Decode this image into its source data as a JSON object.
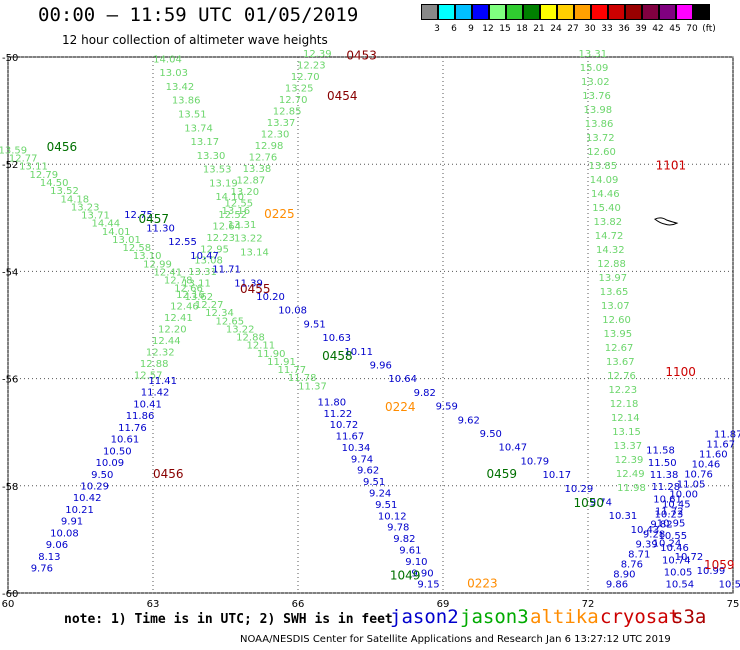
{
  "title": "00:00 – 11:59 UTC 01/05/2019",
  "subtitle": "12 hour collection of altimeter wave heights",
  "colorbar": {
    "labels": [
      "3",
      "6",
      "9",
      "12",
      "15",
      "18",
      "21",
      "24",
      "27",
      "30",
      "33",
      "36",
      "39",
      "42",
      "45",
      "70",
      "(ft)"
    ],
    "colors": [
      "#888888",
      "#00ffff",
      "#00bfff",
      "#0000ff",
      "#80ff80",
      "#30cc30",
      "#008000",
      "#ffff00",
      "#ffd000",
      "#ffa000",
      "#ff0000",
      "#cc0000",
      "#990000",
      "#800040",
      "#800080",
      "#ff00ff",
      "#000000"
    ]
  },
  "note": "note:  1) Time is in UTC; 2) SWH is in feet",
  "satellites": [
    {
      "name": "jason2",
      "color": "#0000cc"
    },
    {
      "name": "jason3",
      "color": "#00aa00"
    },
    {
      "name": "altika",
      "color": "#ff8c00"
    },
    {
      "name": "cryosat",
      "color": "#cc0000"
    },
    {
      "name": "s3a",
      "color": "#aa0000"
    }
  ],
  "footer": "NOAA/NESDIS Center for Satellite Applications and Research   Jan  6 13:27:12 UTC 2019",
  "map": {
    "lon_ticks": [
      "60",
      "63",
      "66",
      "69",
      "72",
      "75"
    ],
    "lat_ticks": [
      "-50",
      "-52",
      "-54",
      "-56",
      "-58",
      "-60"
    ],
    "lon_range": [
      60,
      75
    ],
    "lat_range": [
      -60,
      -50
    ]
  },
  "tracks": [
    {
      "id": "t0453",
      "label": "0453",
      "label_color": "#880000",
      "start": [
        66.4,
        -50.0
      ],
      "end": [
        62.9,
        -56.0
      ],
      "values": [
        "12.39",
        "12.23",
        "12.70",
        "13.25",
        "12.70",
        "12.85",
        "13.37",
        "12.30",
        "12.98",
        "12.76",
        "13.38",
        "12.87",
        "13.20",
        "12.55",
        "12.52",
        "12.64",
        "12.23",
        "12.95",
        "13.08",
        "13.31",
        "13.11",
        "12.16",
        "12.46",
        "12.41",
        "12.20",
        "12.44",
        "12.32",
        "12.88",
        "12.57"
      ],
      "colors": [
        "#6cd66c"
      ]
    },
    {
      "id": "t0454",
      "label": "0454",
      "label_color": "#880000",
      "start": [
        63.3,
        -50.1
      ],
      "end": [
        65.1,
        -53.7
      ],
      "values": [
        "14.04",
        "13.03",
        "13.42",
        "13.86",
        "13.51",
        "13.74",
        "13.17",
        "13.30",
        "13.53",
        "13.19",
        "14.10",
        "13.16",
        "13.31",
        "13.22",
        "13.14"
      ],
      "colors": [
        "#6cd66c"
      ]
    },
    {
      "id": "t0456a",
      "label": "0456",
      "label_color": "#007000",
      "start": [
        60.1,
        -51.8
      ],
      "end": [
        66.3,
        -56.2
      ],
      "values": [
        "13.59",
        "12.77",
        "13.11",
        "12.79",
        "14.50",
        "13.52",
        "14.18",
        "13.23",
        "13.71",
        "14.44",
        "14.01",
        "13.01",
        "12.58",
        "13.10",
        "12.99",
        "12.41",
        "12.78",
        "12.66",
        "13.62",
        "12.27",
        "12.34",
        "12.65",
        "13.22",
        "12.88",
        "12.11",
        "11.90",
        "11.91",
        "11.77",
        "11.78",
        "11.37"
      ],
      "colors": [
        "#6cd66c"
      ]
    },
    {
      "id": "t0457",
      "label": "0457",
      "label_color": "#007000",
      "start": [
        62.7,
        -53.0
      ],
      "end": [
        75.0,
        -59.9
      ],
      "values": [
        "12.75",
        "11.30",
        "12.55",
        "10.47",
        "11.71",
        "11.39",
        "10.20",
        "10.08",
        "9.51",
        "10.63",
        "10.11",
        "9.96",
        "10.64",
        "9.82",
        "9.59",
        "9.62",
        "9.50",
        "10.47",
        "10.79",
        "10.17",
        "10.29",
        "9.74",
        "10.31",
        "10.43",
        "10.24",
        "10.72",
        "10.99",
        "10.53"
      ],
      "colors": [
        "#0000cc"
      ]
    },
    {
      "id": "t0456b",
      "label": "0456",
      "label_color": "#880000",
      "start": [
        60.7,
        -59.6
      ],
      "end": [
        63.2,
        -56.1
      ],
      "values": [
        "9.76",
        "8.13",
        "9.06",
        "10.08",
        "9.91",
        "10.21",
        "10.42",
        "10.29",
        "9.50",
        "10.09",
        "10.50",
        "10.61",
        "11.76",
        "11.86",
        "10.41",
        "11.42",
        "11.41"
      ],
      "colors": [
        "#0000cc"
      ]
    },
    {
      "id": "t0458",
      "label": "0458",
      "label_color": "#007000",
      "start": [
        66.7,
        -56.5
      ],
      "end": [
        68.7,
        -59.9
      ],
      "values": [
        "11.80",
        "11.22",
        "10.72",
        "11.67",
        "10.34",
        "9.74",
        "9.62",
        "9.51",
        "9.24",
        "9.51",
        "10.12",
        "9.78",
        "9.82",
        "9.61",
        "9.10",
        "9.90",
        "9.15"
      ],
      "colors": [
        "#0000cc"
      ]
    },
    {
      "id": "t1100",
      "label": "1100",
      "label_color": "#cc0000",
      "start": [
        72.1,
        -50.0
      ],
      "end": [
        72.9,
        -58.1
      ],
      "values": [
        "13.31",
        "15.09",
        "13.02",
        "13.76",
        "13.98",
        "13.86",
        "13.72",
        "12.60",
        "13.85",
        "14.09",
        "14.46",
        "15.40",
        "13.82",
        "14.72",
        "14.32",
        "12.88",
        "13.97",
        "13.65",
        "13.07",
        "12.60",
        "13.95",
        "12.67",
        "13.67",
        "12.76",
        "12.23",
        "12.18",
        "12.14",
        "13.15",
        "13.37",
        "12.39",
        "12.49",
        "11.98"
      ],
      "colors": [
        "#6cd66c"
      ]
    },
    {
      "id": "t1059",
      "label": "1059",
      "label_color": "#cc0000",
      "start": [
        74.9,
        -57.1
      ],
      "end": [
        72.6,
        -59.9
      ],
      "values": [
        "11.87",
        "11.67",
        "11.60",
        "10.46",
        "10.76",
        "11.05",
        "10.00",
        "10.45",
        "10.23",
        "9.82",
        "9.28",
        "9.39",
        "8.71",
        "8.76",
        "8.90",
        "9.86"
      ],
      "colors": [
        "#0000cc"
      ]
    },
    {
      "id": "t1101",
      "label": "1101",
      "label_color": "#cc0000",
      "start": [
        73.5,
        -57.4
      ],
      "end": [
        73.9,
        -59.9
      ],
      "values": [
        "11.58",
        "11.50",
        "11.38",
        "11.28",
        "10.61",
        "11.72",
        "10.95",
        "10.55",
        "10.46",
        "10.74",
        "10.05",
        "10.54"
      ],
      "colors": [
        "#0000cc"
      ]
    }
  ],
  "labels": [
    {
      "text": "0453",
      "lon": 67.0,
      "lat": -50.05,
      "color": "#880000"
    },
    {
      "text": "0454",
      "lon": 66.6,
      "lat": -50.8,
      "color": "#880000"
    },
    {
      "text": "0456",
      "lon": 60.8,
      "lat": -51.75,
      "color": "#007000"
    },
    {
      "text": "0457",
      "lon": 62.7,
      "lat": -53.1,
      "color": "#007000"
    },
    {
      "text": "0225",
      "lon": 65.3,
      "lat": -53.0,
      "color": "#ff8c00"
    },
    {
      "text": "0455",
      "lon": 64.8,
      "lat": -54.4,
      "color": "#880000"
    },
    {
      "text": "0458",
      "lon": 66.5,
      "lat": -55.65,
      "color": "#007000"
    },
    {
      "text": "0224",
      "lon": 67.8,
      "lat": -56.6,
      "color": "#ff8c00"
    },
    {
      "text": "0456",
      "lon": 63.0,
      "lat": -57.85,
      "color": "#880000"
    },
    {
      "text": "0459",
      "lon": 69.9,
      "lat": -57.85,
      "color": "#007000"
    },
    {
      "text": "1050",
      "lon": 71.7,
      "lat": -58.4,
      "color": "#007000"
    },
    {
      "text": "1101",
      "lon": 73.4,
      "lat": -52.1,
      "color": "#cc0000"
    },
    {
      "text": "1100",
      "lon": 73.6,
      "lat": -55.95,
      "color": "#cc0000"
    },
    {
      "text": "1059",
      "lon": 74.4,
      "lat": -59.55,
      "color": "#cc0000"
    },
    {
      "text": "1049",
      "lon": 67.9,
      "lat": -59.75,
      "color": "#007000"
    },
    {
      "text": "0223",
      "lon": 69.5,
      "lat": -59.9,
      "color": "#ff8c00"
    }
  ]
}
